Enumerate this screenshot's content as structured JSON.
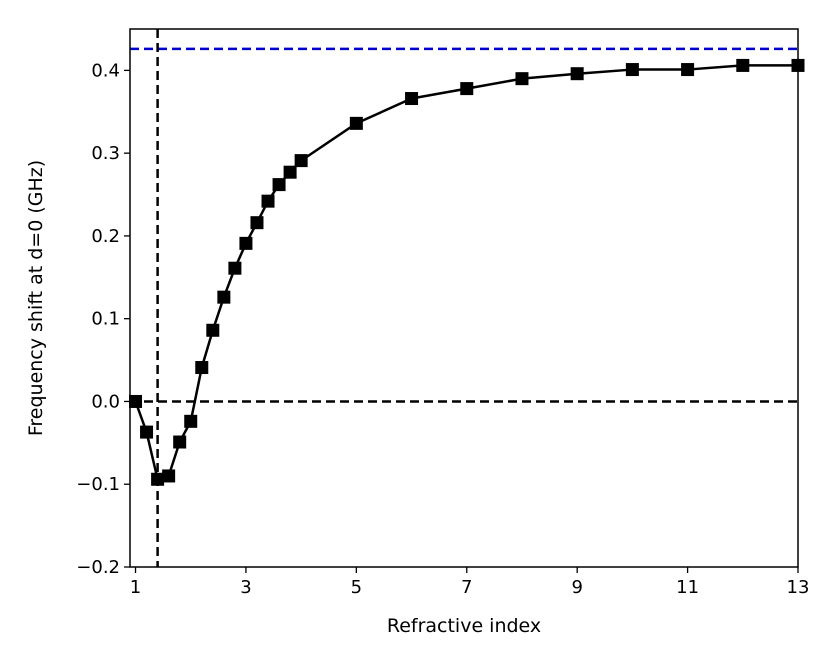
{
  "chart_data": {
    "type": "line",
    "title": "",
    "xlabel": "Refractive index",
    "ylabel": "Frequency shift at d=0 (GHz)",
    "xlim": [
      0.9,
      13.0
    ],
    "ylim": [
      -0.2,
      0.45
    ],
    "xticks": [
      1,
      3,
      5,
      7,
      9,
      11,
      13
    ],
    "xtick_labels": [
      "1",
      "3",
      "5",
      "7",
      "9",
      "11",
      "13"
    ],
    "yticks": [
      -0.2,
      -0.1,
      0.0,
      0.1,
      0.2,
      0.3,
      0.4
    ],
    "ytick_labels": [
      "−0.2",
      "−0.1",
      "0.0",
      "0.1",
      "0.2",
      "0.3",
      "0.4"
    ],
    "grid": false,
    "series": [
      {
        "marker": "square",
        "color": "#000000",
        "x": [
          1.0,
          1.2,
          1.4,
          1.6,
          1.8,
          2.0,
          2.2,
          2.4,
          2.6,
          2.8,
          3.0,
          3.2,
          3.4,
          3.6,
          3.8,
          4.0,
          5.0,
          6.0,
          7.0,
          8.0,
          9.0,
          10.0,
          11.0,
          12.0,
          13.0
        ],
        "y": [
          0.0,
          -0.037,
          -0.094,
          -0.09,
          -0.049,
          -0.024,
          0.041,
          0.086,
          0.126,
          0.161,
          0.191,
          0.216,
          0.242,
          0.262,
          0.277,
          0.291,
          0.336,
          0.366,
          0.378,
          0.39,
          0.396,
          0.401,
          0.401,
          0.406,
          0.406
        ]
      }
    ],
    "reference_lines": [
      {
        "orientation": "horizontal",
        "value": 0.426,
        "style": "dashed",
        "color": "#0000cc"
      },
      {
        "orientation": "horizontal",
        "value": 0.0,
        "style": "dashed",
        "color": "#000000"
      },
      {
        "orientation": "vertical",
        "value": 1.4,
        "style": "dashed",
        "color": "#000000"
      }
    ]
  }
}
